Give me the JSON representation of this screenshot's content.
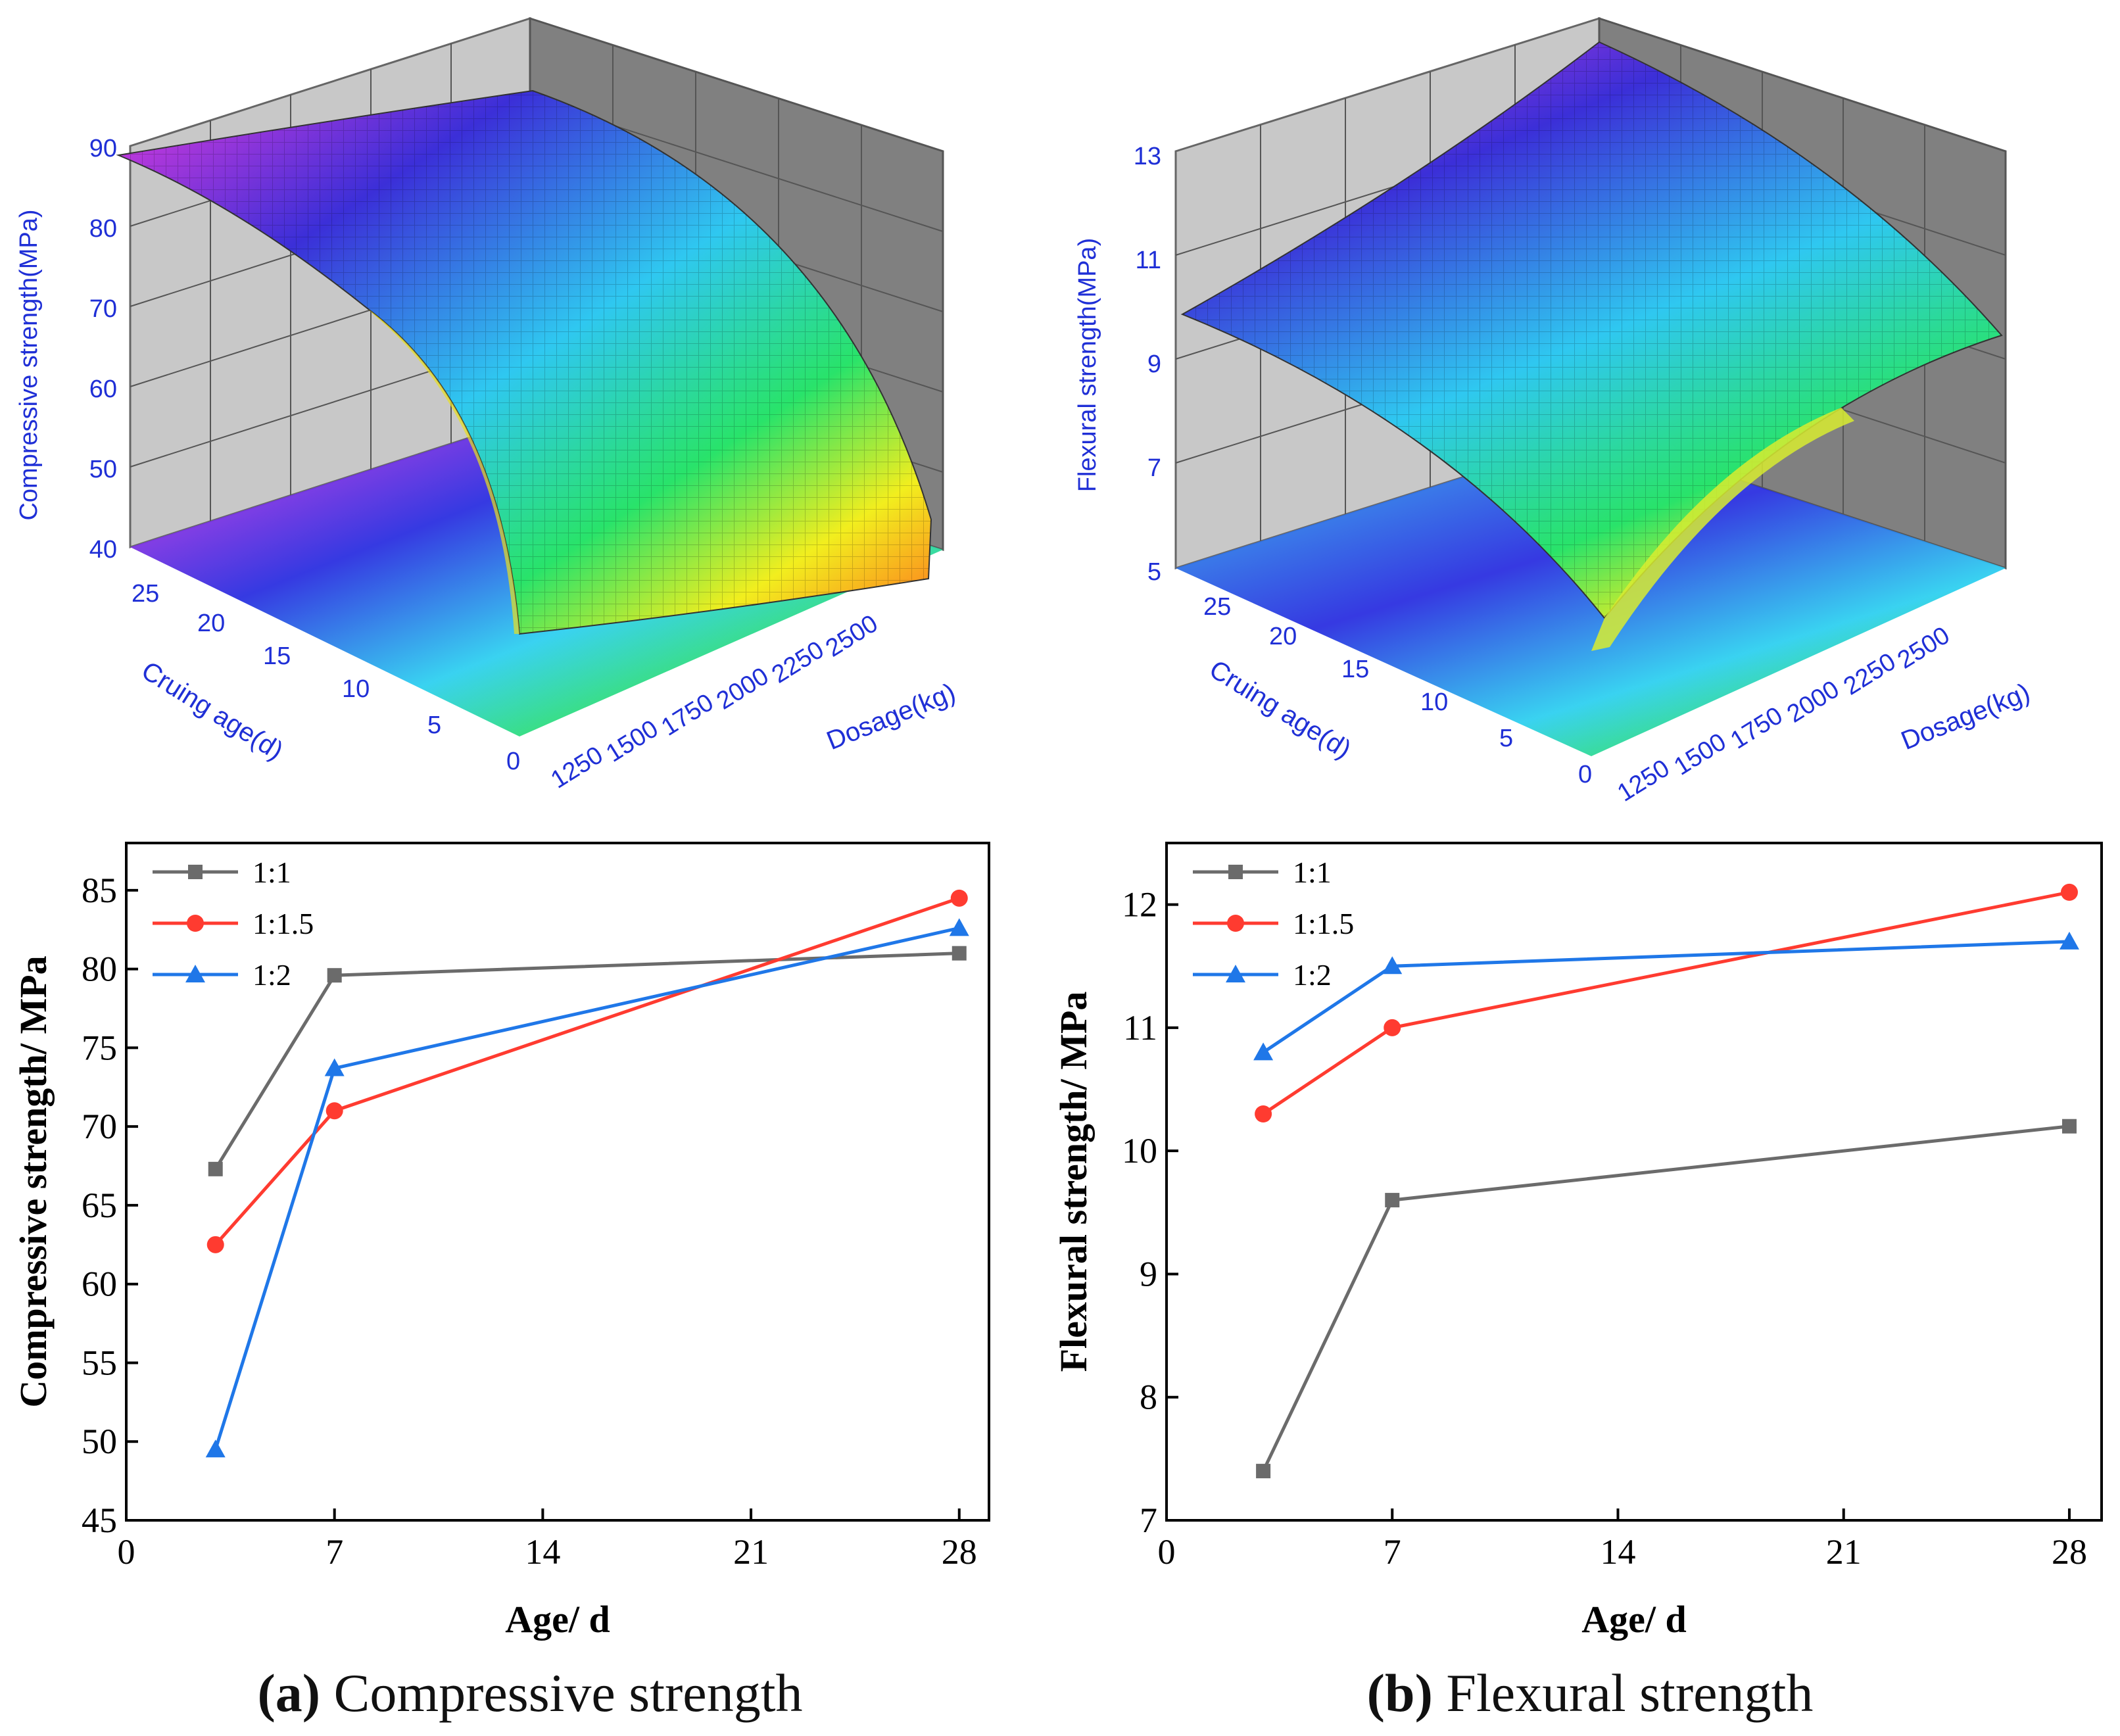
{
  "chart_data": [
    {
      "id": "a3d",
      "type": "surface3d",
      "zlabel": "Compressive strength(MPa)",
      "xlabel": "Dosage(kg)",
      "ylabel": "Cruing age(d)",
      "zticks": [
        "40",
        "50",
        "60",
        "70",
        "80",
        "90"
      ],
      "xticks": [
        "1250",
        "1500",
        "1750",
        "2000",
        "2250",
        "2500"
      ],
      "yticks": [
        "0",
        "5",
        "10",
        "15",
        "20",
        "25"
      ],
      "zlim": [
        40,
        90
      ],
      "xlim": [
        1200,
        2600
      ],
      "ylim": [
        0,
        28
      ]
    },
    {
      "id": "b3d",
      "type": "surface3d",
      "zlabel": "Flexural strength(MPa)",
      "xlabel": "Dosage(kg)",
      "ylabel": "Cruing age(d)",
      "zticks": [
        "5",
        "7",
        "9",
        "11",
        "13"
      ],
      "xticks": [
        "1250",
        "1500",
        "1750",
        "2000",
        "2250",
        "2500"
      ],
      "yticks": [
        "0",
        "5",
        "10",
        "15",
        "20",
        "25"
      ],
      "zlim": [
        5,
        13
      ],
      "xlim": [
        1200,
        2600
      ],
      "ylim": [
        0,
        28
      ]
    },
    {
      "id": "a2d",
      "type": "line",
      "xlabel": "Age/  d",
      "ylabel": "Compressive strength/  MPa",
      "xlim": [
        0,
        29
      ],
      "ylim": [
        45,
        88
      ],
      "xticks": [
        0,
        7,
        14,
        21,
        28
      ],
      "yticks": [
        45,
        50,
        55,
        60,
        65,
        70,
        75,
        80,
        85
      ],
      "series": [
        {
          "name": "1:1",
          "marker": "square",
          "color": "#6b6b6b",
          "x": [
            3,
            7,
            28
          ],
          "y": [
            67.3,
            79.6,
            81.0
          ]
        },
        {
          "name": "1:1.5",
          "marker": "circle",
          "color": "#ff3b30",
          "x": [
            3,
            7,
            28
          ],
          "y": [
            62.5,
            71.0,
            84.5
          ]
        },
        {
          "name": "1:2",
          "marker": "triangle",
          "color": "#1f77e8",
          "x": [
            3,
            7,
            28
          ],
          "y": [
            49.5,
            73.7,
            82.6
          ]
        }
      ]
    },
    {
      "id": "b2d",
      "type": "line",
      "xlabel": "Age/  d",
      "ylabel": "Flexural strength/  MPa",
      "xlim": [
        0,
        29
      ],
      "ylim": [
        7,
        12.5
      ],
      "xticks": [
        0,
        7,
        14,
        21,
        28
      ],
      "yticks": [
        7,
        8,
        9,
        10,
        11,
        12
      ],
      "series": [
        {
          "name": "1:1",
          "marker": "square",
          "color": "#6b6b6b",
          "x": [
            3,
            7,
            28
          ],
          "y": [
            7.4,
            9.6,
            10.2
          ]
        },
        {
          "name": "1:1.5",
          "marker": "circle",
          "color": "#ff3b30",
          "x": [
            3,
            7,
            28
          ],
          "y": [
            10.3,
            11.0,
            12.1
          ]
        },
        {
          "name": "1:2",
          "marker": "triangle",
          "color": "#1f77e8",
          "x": [
            3,
            7,
            28
          ],
          "y": [
            10.8,
            11.5,
            11.7
          ]
        }
      ]
    }
  ],
  "captions": {
    "a_label": "(a)",
    "a_text": " Compressive strength",
    "b_label": "(b)",
    "b_text": " Flexural strength"
  },
  "colors": {
    "axis3d_text": "#1f2fd6",
    "grid_wall": "#c9c9c9",
    "grid_wall_dark": "#7f7f7f"
  }
}
